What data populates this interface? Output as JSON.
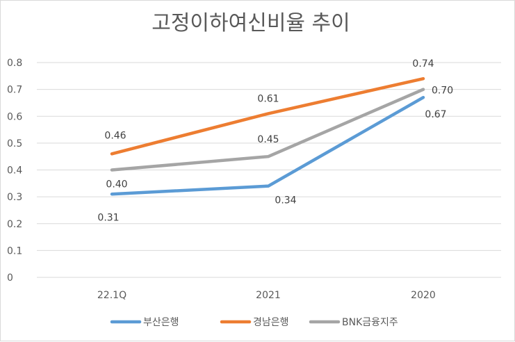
{
  "chart_data": {
    "type": "line",
    "title": "고정이하여신비율 추이",
    "categories": [
      "22.1Q",
      "2021",
      "2020"
    ],
    "ylim": [
      0,
      0.8
    ],
    "yticks": [
      "0.8",
      "0.7",
      "0.6",
      "0.5",
      "0.4",
      "0.3",
      "0.2",
      "0.1",
      "0"
    ],
    "grid": true,
    "legend_position": "bottom",
    "series": [
      {
        "name": "부산은행",
        "color": "#5B9BD5",
        "values": [
          0.31,
          0.34,
          0.67
        ],
        "labels": [
          "0.31",
          "0.34",
          "0.67"
        ]
      },
      {
        "name": "경남은행",
        "color": "#ED7D31",
        "values": [
          0.46,
          0.61,
          0.74
        ],
        "labels": [
          "0.46",
          "0.61",
          "0.74"
        ]
      },
      {
        "name": "BNK금융지주",
        "color": "#A5A5A5",
        "values": [
          0.4,
          0.45,
          0.7
        ],
        "labels": [
          "0.40",
          "0.45",
          "0.70"
        ]
      }
    ]
  }
}
